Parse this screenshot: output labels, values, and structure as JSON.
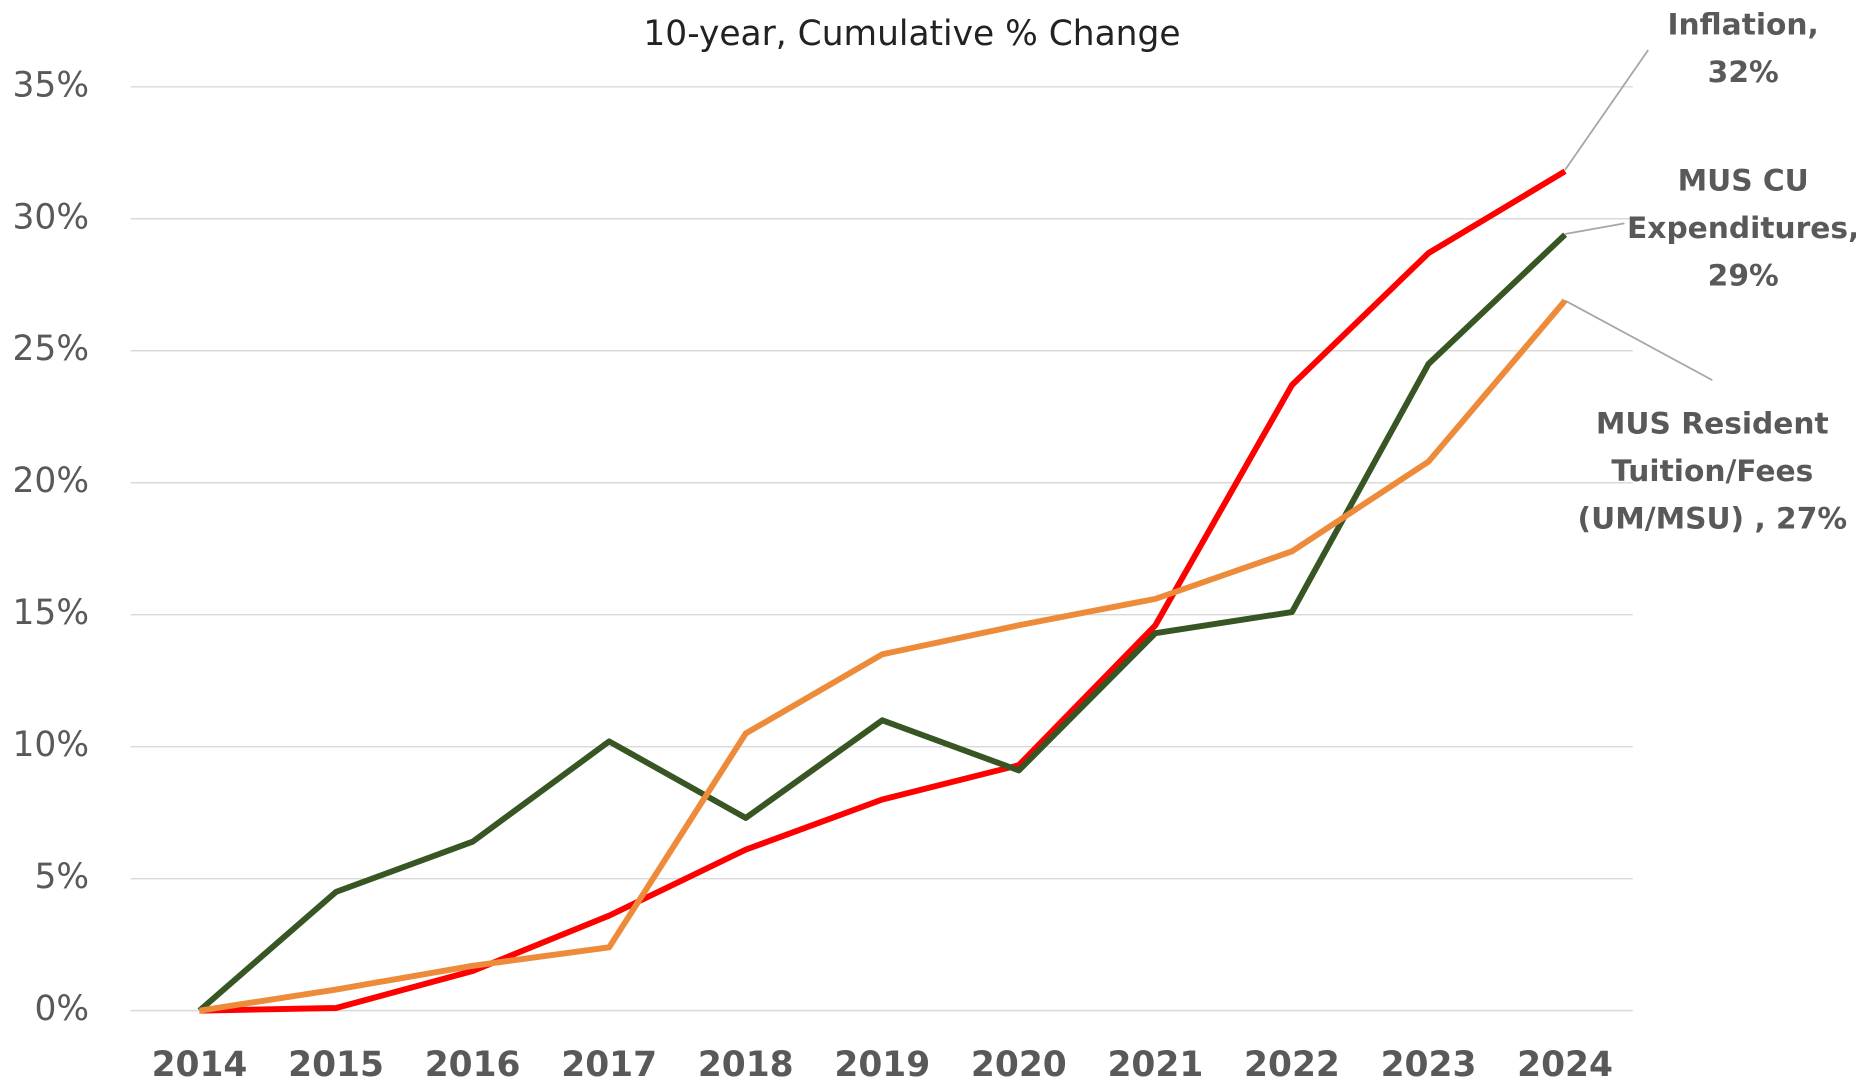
{
  "chart_data": {
    "type": "line",
    "subtitle": "10-year, Cumulative % Change",
    "categories": [
      "2014",
      "2015",
      "2016",
      "2017",
      "2018",
      "2019",
      "2020",
      "2021",
      "2022",
      "2023",
      "2024"
    ],
    "series": [
      {
        "label": [
          "Inflation,",
          "32%"
        ],
        "color": "#ff0000",
        "values": [
          0,
          0.1,
          1.5,
          3.6,
          6.1,
          8.0,
          9.3,
          14.6,
          23.7,
          28.7,
          31.8
        ]
      },
      {
        "label": [
          "MUS CU",
          "Expenditures,",
          "29%"
        ],
        "color": "#375623",
        "values": [
          0,
          4.5,
          6.4,
          10.2,
          7.3,
          11.0,
          9.1,
          14.3,
          15.1,
          24.5,
          29.4
        ]
      },
      {
        "label": [
          "MUS Resident",
          "Tuition/Fees",
          "(UM/MSU) , 27%"
        ],
        "color": "#ed8b3a",
        "values": [
          0,
          0.8,
          1.7,
          2.4,
          10.5,
          13.5,
          14.6,
          15.6,
          17.4,
          20.8,
          26.9
        ]
      }
    ],
    "ylim": [
      0,
      35
    ],
    "yticks": [
      {
        "value": 0,
        "label": "0%"
      },
      {
        "value": 5,
        "label": "5%"
      },
      {
        "value": 10,
        "label": "10%"
      },
      {
        "value": 15,
        "label": "15%"
      },
      {
        "value": 20,
        "label": "20%"
      },
      {
        "value": 25,
        "label": "25%"
      },
      {
        "value": 30,
        "label": "30%"
      },
      {
        "value": 35,
        "label": "35%"
      }
    ],
    "grid": true
  }
}
